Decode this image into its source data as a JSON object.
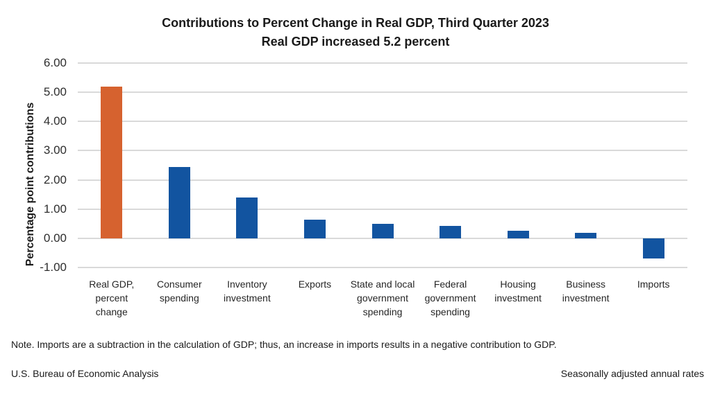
{
  "chart_data": {
    "type": "bar",
    "title": "Contributions to Percent Change in Real GDP, Third Quarter 2023",
    "subtitle": "Real GDP increased 5.2 percent",
    "ylabel": "Percentage point contributions",
    "ylim": [
      -1,
      6
    ],
    "ytick_labels": [
      "6.00",
      "5.00",
      "4.00",
      "3.00",
      "2.00",
      "1.00",
      "0.00",
      "-1.00"
    ],
    "grid": true,
    "legend": "none",
    "categories": [
      "Real GDP,\npercent\nchange",
      "Consumer\nspending",
      "Inventory\ninvestment",
      "Exports",
      "State and local\ngovernment\nspending",
      "Federal\ngovernment\nspending",
      "Housing\ninvestment",
      "Business\ninvestment",
      "Imports"
    ],
    "values": [
      5.2,
      2.44,
      1.4,
      0.63,
      0.5,
      0.43,
      0.25,
      0.18,
      -0.7
    ],
    "highlight_index": 0,
    "colors": {
      "highlight_bar": "#d6622f",
      "default_bar": "#1254a0",
      "gridline": "#d9d9d9"
    }
  },
  "note": "Note. Imports are a subtraction in the calculation of GDP; thus, an increase in imports results in a negative contribution to GDP.",
  "footer": {
    "left": "U.S. Bureau of Economic Analysis",
    "right": "Seasonally adjusted annual rates"
  }
}
